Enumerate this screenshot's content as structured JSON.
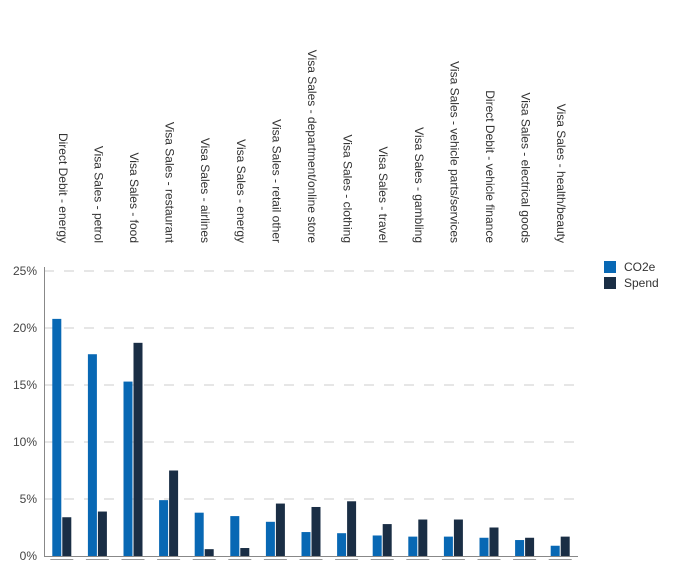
{
  "chart_data": {
    "type": "bar",
    "categories": [
      "Direct Debit - energy",
      "Visa Sales - petrol",
      "Visa Sales - food",
      "Visa Sales - restaurant",
      "Visa Sales - airlines",
      "Visa Sales - energy",
      "Visa Sales - retail other",
      "Visa Sales - department/online store",
      "Visa Sales - clothing",
      "Visa Sales - travel",
      "Visa Sales - gambling",
      "Visa Sales - vehicle parts/services",
      "Direct Debit - vehicle finance",
      "Visa Sales - electrical goods",
      "Visa Sales - health/beauty"
    ],
    "series": [
      {
        "name": "CO2e",
        "color": "#0868b4",
        "values": [
          20.8,
          17.7,
          15.3,
          4.9,
          3.8,
          3.5,
          3.0,
          2.1,
          2.0,
          1.8,
          1.7,
          1.7,
          1.6,
          1.4,
          0.9
        ]
      },
      {
        "name": "Spend",
        "color": "#1a2e45",
        "values": [
          3.4,
          3.9,
          18.7,
          7.5,
          0.6,
          0.7,
          4.6,
          4.3,
          4.8,
          2.8,
          3.2,
          3.2,
          2.5,
          1.6,
          1.7
        ]
      }
    ],
    "y_ticks": [
      "0%",
      "5%",
      "10%",
      "15%",
      "20%",
      "25%"
    ],
    "ylim": [
      0,
      25
    ],
    "y_unit": "%",
    "grid": true,
    "legend_position": "right",
    "title": "",
    "xlabel": "",
    "ylabel": ""
  }
}
